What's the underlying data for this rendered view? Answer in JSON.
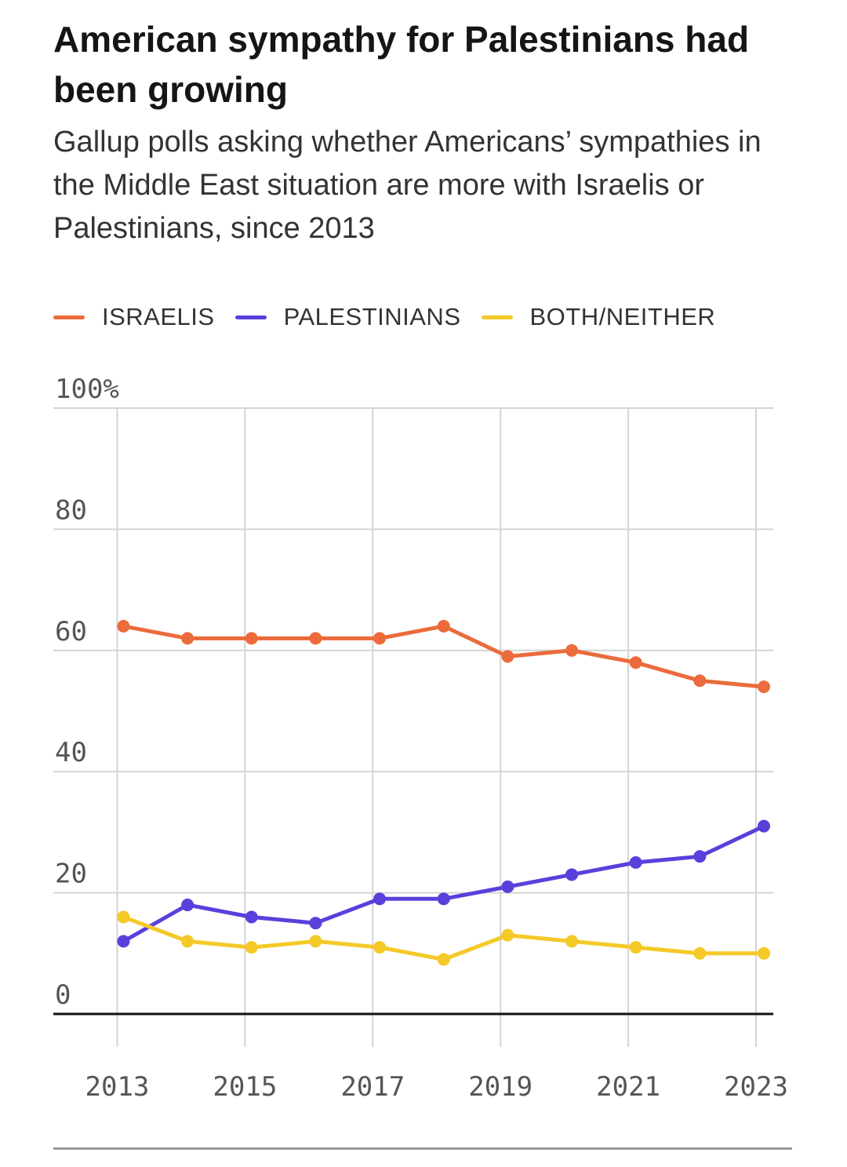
{
  "title": "American sympathy for Palestinians had been growing",
  "subtitle": "Gallup polls asking whether Americans’ sympathies in the Middle East situation are more with Israelis or Palestinians, since 2013",
  "legend": [
    {
      "name": "ISRAELIS",
      "color": "#eb6b3c"
    },
    {
      "name": "PALESTINIANS",
      "color": "#5b3fdb"
    },
    {
      "name": "BOTH/NEITHER",
      "color": "#f4c928"
    }
  ],
  "chart_data": {
    "type": "line",
    "title": "American sympathy for Palestinians had been growing",
    "subtitle": "Gallup polls asking whether Americans’ sympathies in the Middle East situation are more with Israelis or Palestinians, since 2013",
    "x": [
      2013,
      2014,
      2015,
      2016,
      2017,
      2018,
      2019,
      2020,
      2021,
      2022,
      2023
    ],
    "xlim": [
      2012,
      2023
    ],
    "ylim": [
      0,
      100
    ],
    "y_ticks": [
      "0",
      "20",
      "40",
      "60",
      "80",
      "100%"
    ],
    "x_ticks": [
      "2013",
      "2015",
      "2017",
      "2019",
      "2021",
      "2023"
    ],
    "grid": true,
    "legend_position": "top-left",
    "series": [
      {
        "name": "ISRAELIS",
        "color": "#eb6b3c",
        "values": [
          64,
          62,
          62,
          62,
          62,
          64,
          59,
          60,
          58,
          55,
          54
        ]
      },
      {
        "name": "PALESTINIANS",
        "color": "#5b3fdb",
        "values": [
          12,
          18,
          16,
          15,
          19,
          19,
          21,
          23,
          25,
          26,
          31
        ]
      },
      {
        "name": "BOTH/NEITHER",
        "color": "#f4c928",
        "values": [
          16,
          12,
          11,
          12,
          11,
          9,
          13,
          12,
          11,
          10,
          10
        ]
      }
    ]
  }
}
